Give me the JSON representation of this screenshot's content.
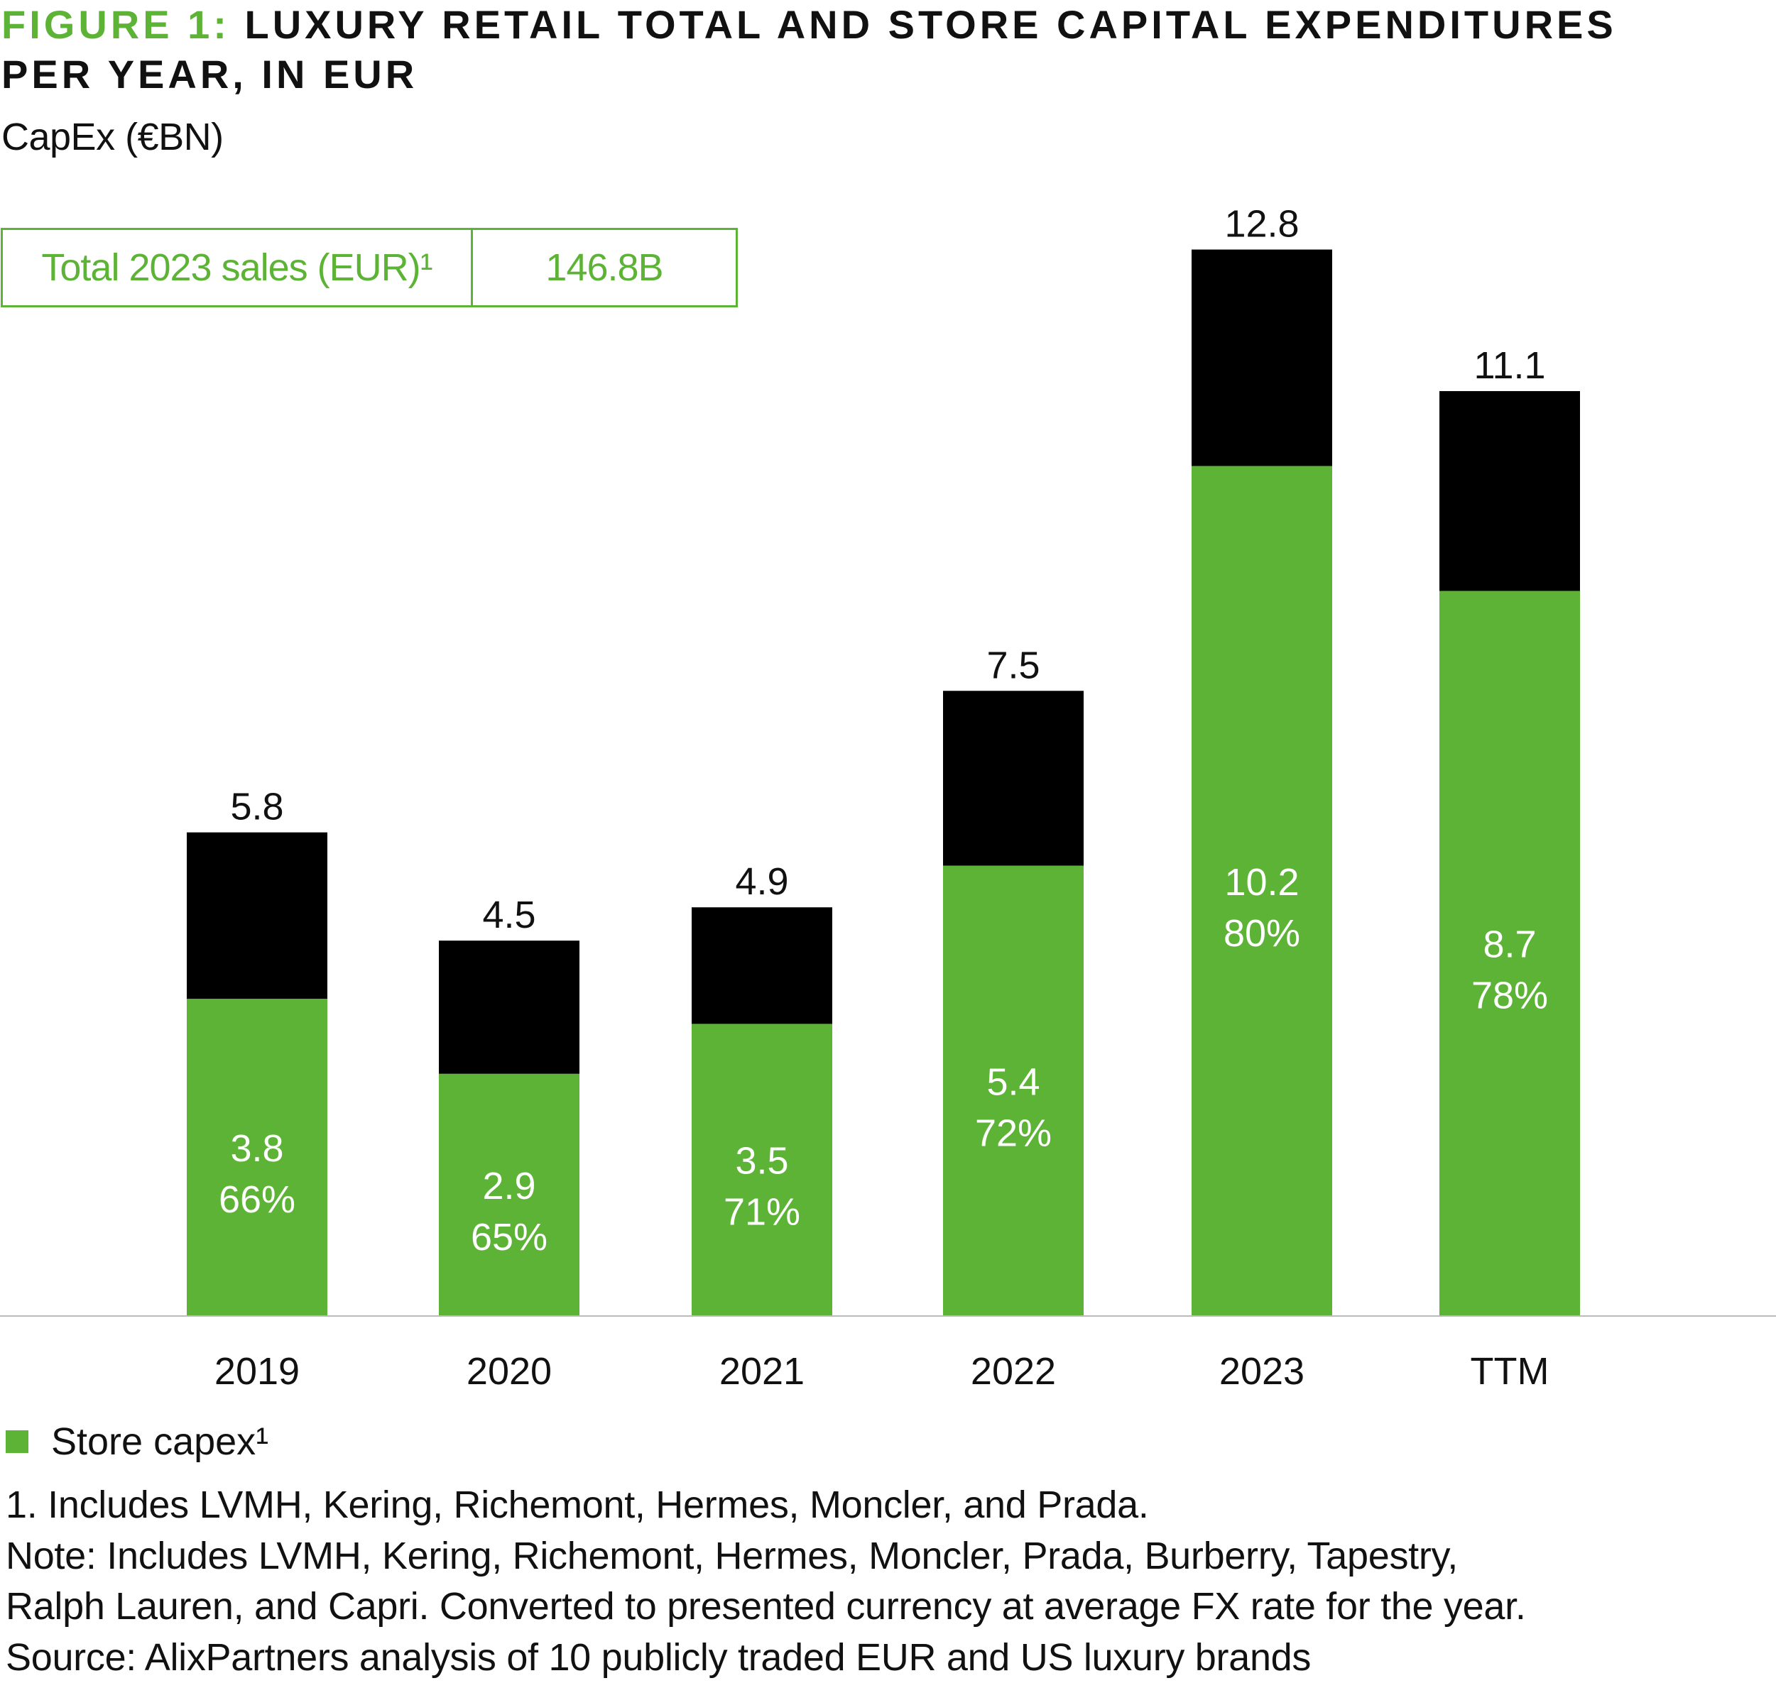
{
  "title": {
    "figure_label": "FIGURE 1:",
    "text_line1": "LUXURY RETAIL TOTAL AND STORE CAPITAL EXPENDITURES",
    "text_line2": "PER YEAR, IN EUR"
  },
  "subtitle": "CapEx (€BN)",
  "callout": {
    "label": "Total 2023 sales (EUR)¹",
    "value": "146.8B"
  },
  "legend": {
    "label": "Store capex¹"
  },
  "footnotes": [
    "1. Includes LVMH, Kering, Richemont, Hermes, Moncler, and Prada.",
    "Note: Includes LVMH, Kering, Richemont, Hermes, Moncler, Prada, Burberry, Tapestry,",
    "Ralph Lauren, and Capri. Converted to presented currency at average FX rate for the year.",
    "Source: AlixPartners analysis of 10 publicly traded EUR and US luxury brands"
  ],
  "colors": {
    "store": "#5DB336",
    "other": "#000000",
    "accent": "#5DB336"
  },
  "chart_data": {
    "type": "bar",
    "stacked": true,
    "ylabel": "CapEx (€BN)",
    "categories": [
      "2019",
      "2020",
      "2021",
      "2022",
      "2023",
      "TTM"
    ],
    "totals": [
      5.8,
      4.5,
      4.9,
      7.5,
      12.8,
      11.1
    ],
    "series": [
      {
        "name": "Store capex¹",
        "values": [
          3.8,
          2.9,
          3.5,
          5.4,
          10.2,
          8.7
        ],
        "pct_labels": [
          "66%",
          "65%",
          "71%",
          "72%",
          "80%",
          "78%"
        ]
      },
      {
        "values": [
          2.0,
          1.6,
          1.4,
          2.1,
          2.6,
          2.4
        ]
      }
    ],
    "ylim": [
      0,
      12.8
    ],
    "grid": false
  }
}
